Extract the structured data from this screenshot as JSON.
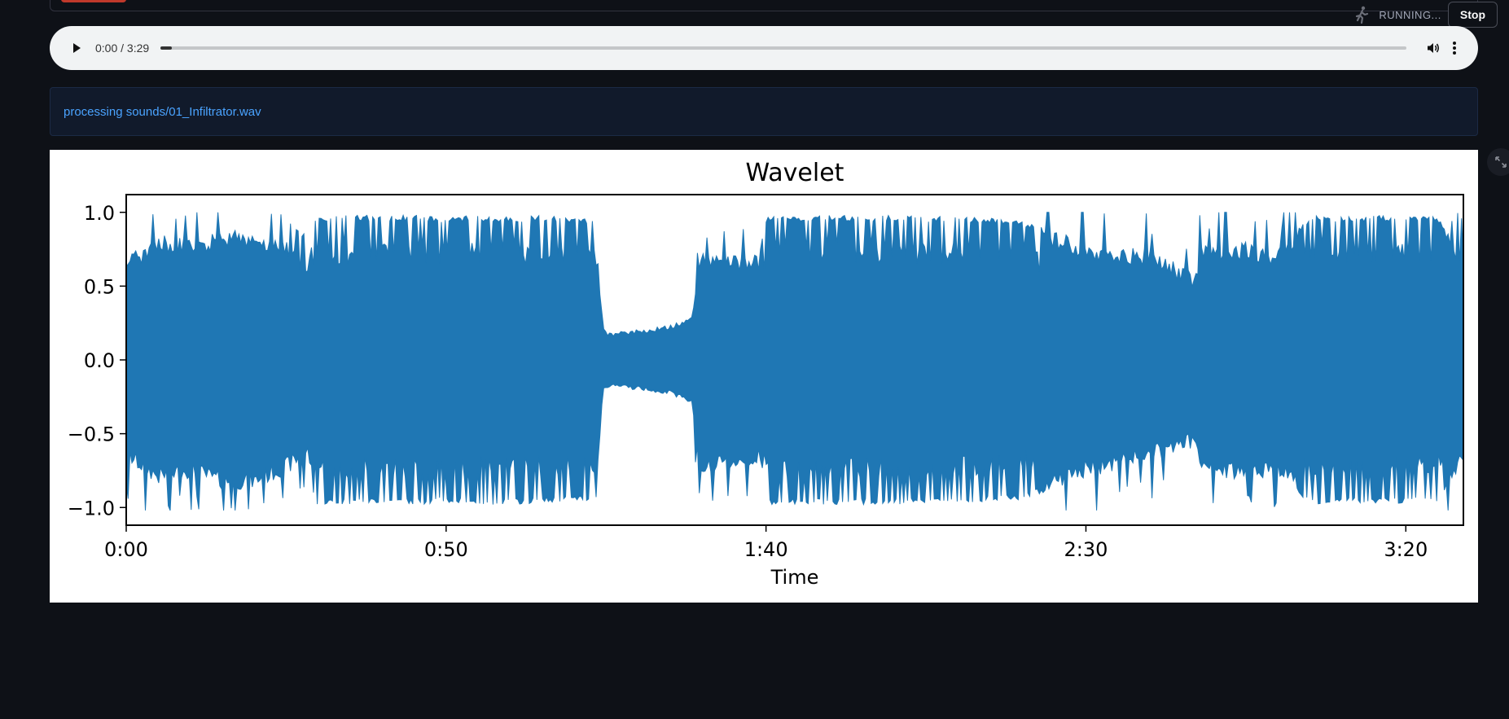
{
  "status": {
    "running_label": "RUNNING...",
    "stop_label": "Stop",
    "running_icon": "running-man-icon"
  },
  "audio": {
    "time_display": "0:00 / 3:29",
    "progress_fraction": 0.0
  },
  "info": {
    "message": "processing sounds/01_Infiltrator.wav"
  },
  "colors": {
    "background": "#0e1117",
    "accent": "#4aa3ff",
    "waveform": "#1f77b4"
  },
  "chart_data": {
    "type": "area",
    "title": "Wavelet",
    "xlabel": "Time",
    "ylabel": "",
    "xlim": [
      0,
      209
    ],
    "ylim": [
      -1.12,
      1.12
    ],
    "xticks": [
      0,
      50,
      100,
      150,
      200
    ],
    "xtick_labels": [
      "0:00",
      "0:50",
      "1:40",
      "2:30",
      "3:20"
    ],
    "yticks": [
      1.0,
      0.5,
      0.0,
      -0.5,
      -1.0
    ],
    "ytick_labels": [
      "1.0",
      "0.5",
      "0.0",
      "−0.5",
      "−1.0"
    ],
    "grid": false,
    "series": [
      {
        "x": [
          0,
          5,
          10,
          15,
          20,
          25,
          28.5,
          29.5,
          35,
          40,
          45,
          50,
          55,
          60,
          65,
          70,
          73.5,
          74.5,
          75.5,
          80,
          85,
          88.5,
          89.5,
          95,
          99,
          100,
          110,
          120,
          130,
          140,
          150,
          160,
          167,
          168,
          175,
          180,
          185,
          190,
          195,
          200,
          205,
          209
        ],
        "upper": [
          0.7,
          0.85,
          0.82,
          0.88,
          0.88,
          0.8,
          0.68,
          0.97,
          0.98,
          0.98,
          0.98,
          0.97,
          0.98,
          0.97,
          0.98,
          0.96,
          0.95,
          0.2,
          0.17,
          0.19,
          0.22,
          0.28,
          0.72,
          0.72,
          0.72,
          0.97,
          0.98,
          0.98,
          0.97,
          0.95,
          0.8,
          0.75,
          0.6,
          0.78,
          0.8,
          0.75,
          0.98,
          0.97,
          0.98,
          0.98,
          0.97,
          0.7
        ],
        "lower": [
          -0.7,
          -0.85,
          -0.8,
          -0.88,
          -0.88,
          -0.78,
          -0.68,
          -0.98,
          -0.98,
          -0.97,
          -0.98,
          -0.97,
          -0.98,
          -0.98,
          -0.97,
          -0.96,
          -0.95,
          -0.2,
          -0.17,
          -0.19,
          -0.22,
          -0.28,
          -0.8,
          -0.75,
          -0.72,
          -0.98,
          -0.98,
          -0.98,
          -0.97,
          -0.95,
          -0.8,
          -0.7,
          -0.6,
          -0.8,
          -0.82,
          -0.78,
          -0.98,
          -0.97,
          -0.98,
          -0.97,
          -0.97,
          -0.7
        ]
      }
    ]
  }
}
